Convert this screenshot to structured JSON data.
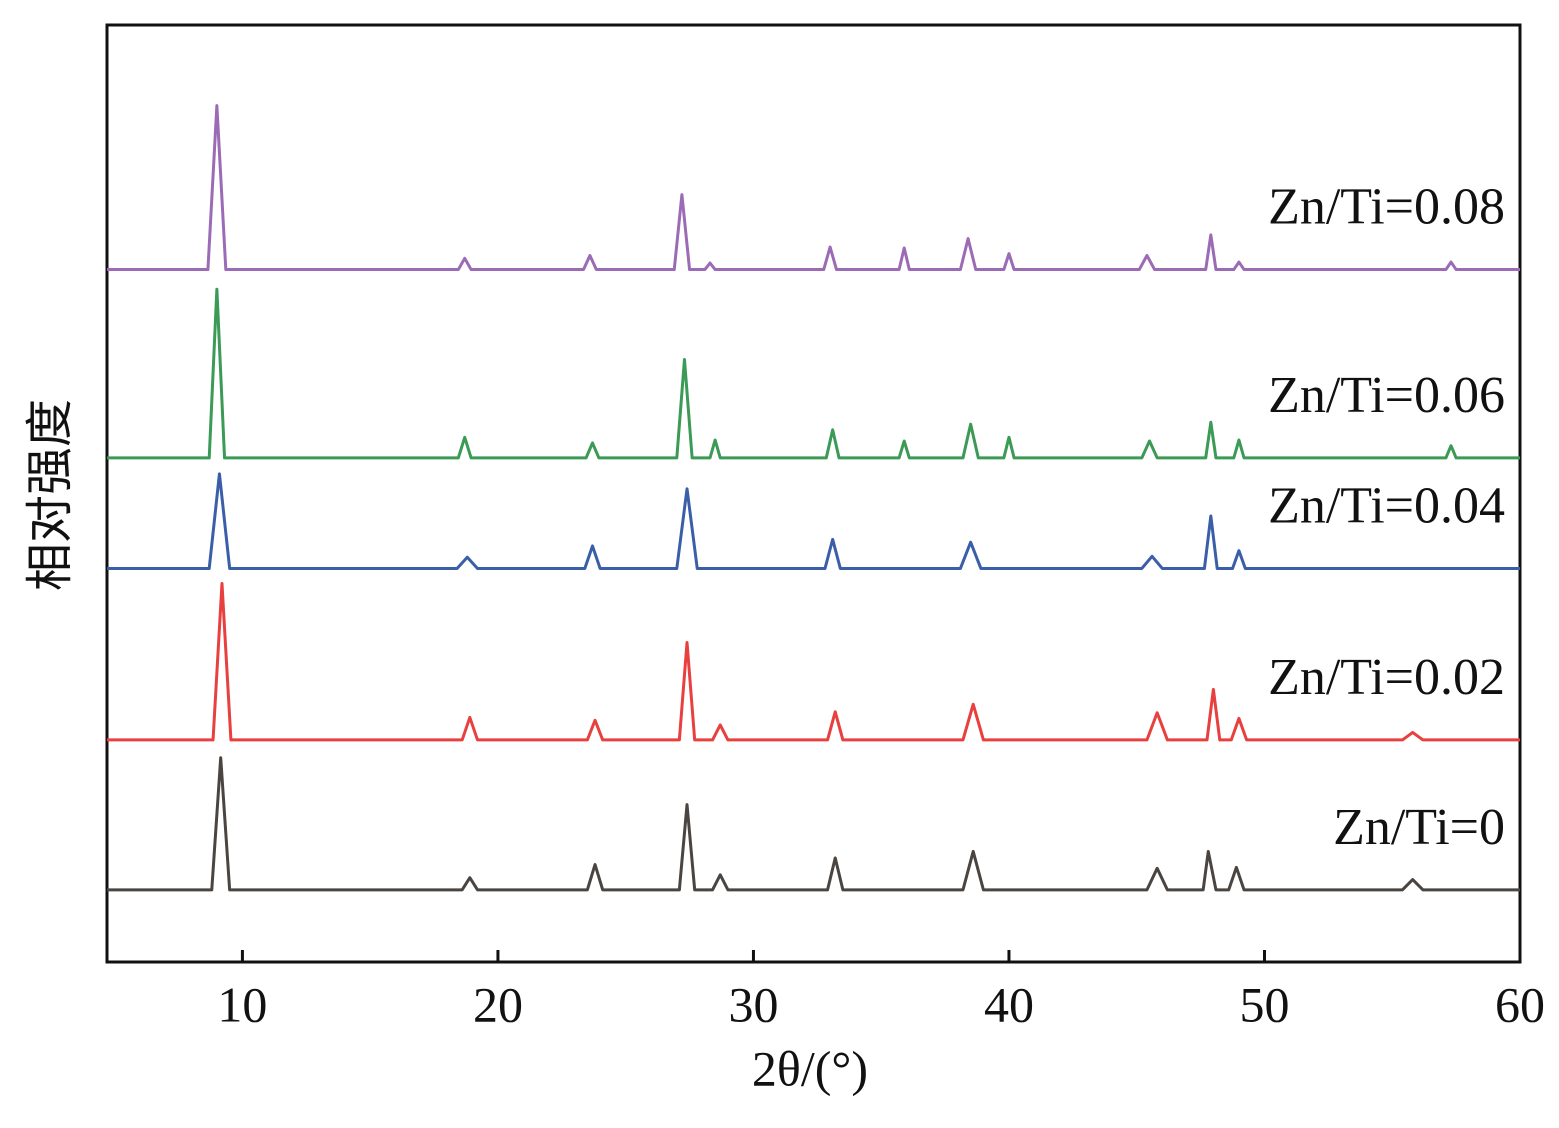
{
  "chart_data": {
    "type": "line",
    "xlabel": "2θ/(°)",
    "ylabel": "相对强度",
    "xlim": [
      4.7,
      60
    ],
    "ylim": [
      0,
      100
    ],
    "xticks": [
      10,
      20,
      30,
      40,
      50,
      60
    ],
    "series": [
      {
        "name": "Zn/Ti=0",
        "color": "#4a4541",
        "x": [
          4.7,
          8.8,
          9.15,
          9.5,
          18.6,
          18.9,
          19.2,
          23.5,
          23.8,
          24.1,
          27.1,
          27.4,
          27.7,
          28.4,
          28.7,
          29.0,
          32.9,
          33.2,
          33.5,
          38.2,
          38.6,
          39.0,
          45.4,
          45.8,
          46.2,
          47.6,
          47.8,
          48.1,
          48.6,
          48.9,
          49.2,
          55.4,
          55.8,
          56.2,
          60
        ],
        "values": [
          7.7,
          7.7,
          21.8,
          7.7,
          7.7,
          9.0,
          7.7,
          7.7,
          10.4,
          7.7,
          7.7,
          16.8,
          7.7,
          7.7,
          9.3,
          7.7,
          7.7,
          11.1,
          7.7,
          7.7,
          11.8,
          7.7,
          7.7,
          10.0,
          7.7,
          7.7,
          11.8,
          7.7,
          7.7,
          10.1,
          7.7,
          7.7,
          8.8,
          7.7,
          7.7
        ]
      },
      {
        "name": "Zn/Ti=0.02",
        "color": "#e8403f",
        "x": [
          4.7,
          8.85,
          9.2,
          9.55,
          18.6,
          18.9,
          19.2,
          23.5,
          23.8,
          24.1,
          27.1,
          27.4,
          27.7,
          28.4,
          28.7,
          29.0,
          32.9,
          33.2,
          33.5,
          38.2,
          38.6,
          39.0,
          45.4,
          45.8,
          46.2,
          47.75,
          48.0,
          48.25,
          48.7,
          49.0,
          49.3,
          55.4,
          55.8,
          56.2,
          60
        ],
        "values": [
          23.7,
          23.7,
          40.4,
          23.7,
          23.7,
          26.1,
          23.7,
          23.7,
          25.8,
          23.7,
          23.7,
          34.1,
          23.7,
          23.7,
          25.3,
          23.7,
          23.7,
          26.7,
          23.7,
          23.7,
          27.5,
          23.7,
          23.7,
          26.6,
          23.7,
          23.7,
          29.1,
          23.7,
          23.7,
          26.0,
          23.7,
          23.7,
          24.5,
          23.7,
          23.7
        ]
      },
      {
        "name": "Zn/Ti=0.04",
        "color": "#3a5fa8",
        "x": [
          4.7,
          8.7,
          9.1,
          9.5,
          18.4,
          18.8,
          19.2,
          23.4,
          23.7,
          24.0,
          27.0,
          27.4,
          27.8,
          32.8,
          33.1,
          33.4,
          38.1,
          38.5,
          38.9,
          45.2,
          45.6,
          46.0,
          47.65,
          47.9,
          48.15,
          48.75,
          49.0,
          49.25,
          60
        ],
        "values": [
          42.0,
          42.0,
          52.1,
          42.0,
          42.0,
          43.2,
          42.0,
          42.0,
          44.4,
          42.0,
          42.0,
          50.5,
          42.0,
          42.0,
          45.1,
          42.0,
          42.0,
          44.8,
          42.0,
          42.0,
          43.3,
          42.0,
          42.0,
          47.6,
          42.0,
          42.0,
          43.9,
          42.0,
          42.0
        ]
      },
      {
        "name": "Zn/Ti=0.06",
        "color": "#3b9a55",
        "x": [
          4.7,
          8.7,
          9.0,
          9.3,
          18.45,
          18.7,
          18.95,
          23.45,
          23.7,
          23.95,
          27.0,
          27.3,
          27.6,
          28.3,
          28.5,
          28.7,
          32.85,
          33.1,
          33.35,
          35.7,
          35.9,
          36.1,
          38.2,
          38.5,
          38.8,
          39.8,
          40.0,
          40.2,
          45.2,
          45.5,
          45.8,
          47.7,
          47.9,
          48.1,
          48.8,
          49.0,
          49.2,
          57.1,
          57.3,
          57.5,
          60
        ],
        "values": [
          53.8,
          53.8,
          71.8,
          53.8,
          53.8,
          56.0,
          53.8,
          53.8,
          55.4,
          53.8,
          53.8,
          64.3,
          53.8,
          53.8,
          55.7,
          53.8,
          53.8,
          56.8,
          53.8,
          53.8,
          55.6,
          53.8,
          53.8,
          57.4,
          53.8,
          53.8,
          56.0,
          53.8,
          53.8,
          55.6,
          53.8,
          53.8,
          57.6,
          53.8,
          53.8,
          55.7,
          53.8,
          53.8,
          55.1,
          53.8,
          53.8
        ]
      },
      {
        "name": "Zn/Ti=0.08",
        "color": "#9b6bb5",
        "x": [
          4.7,
          8.65,
          9.0,
          9.35,
          18.45,
          18.7,
          18.95,
          23.35,
          23.6,
          23.85,
          26.9,
          27.2,
          27.5,
          28.1,
          28.3,
          28.5,
          32.75,
          33.0,
          33.25,
          35.7,
          35.9,
          36.1,
          38.1,
          38.4,
          38.7,
          39.8,
          40.0,
          40.2,
          45.1,
          45.4,
          45.7,
          47.7,
          47.9,
          48.1,
          48.8,
          49.0,
          49.2,
          57.1,
          57.3,
          57.5,
          60
        ],
        "values": [
          73.9,
          73.9,
          91.4,
          73.9,
          73.9,
          75.1,
          73.9,
          73.9,
          75.4,
          73.9,
          73.9,
          81.9,
          73.9,
          73.9,
          74.6,
          73.9,
          73.9,
          76.3,
          73.9,
          73.9,
          76.2,
          73.9,
          73.9,
          77.2,
          73.9,
          73.9,
          75.6,
          73.9,
          73.9,
          75.4,
          73.9,
          73.9,
          77.6,
          73.9,
          73.9,
          74.7,
          73.9,
          73.9,
          74.7,
          73.9,
          73.9
        ]
      }
    ]
  }
}
